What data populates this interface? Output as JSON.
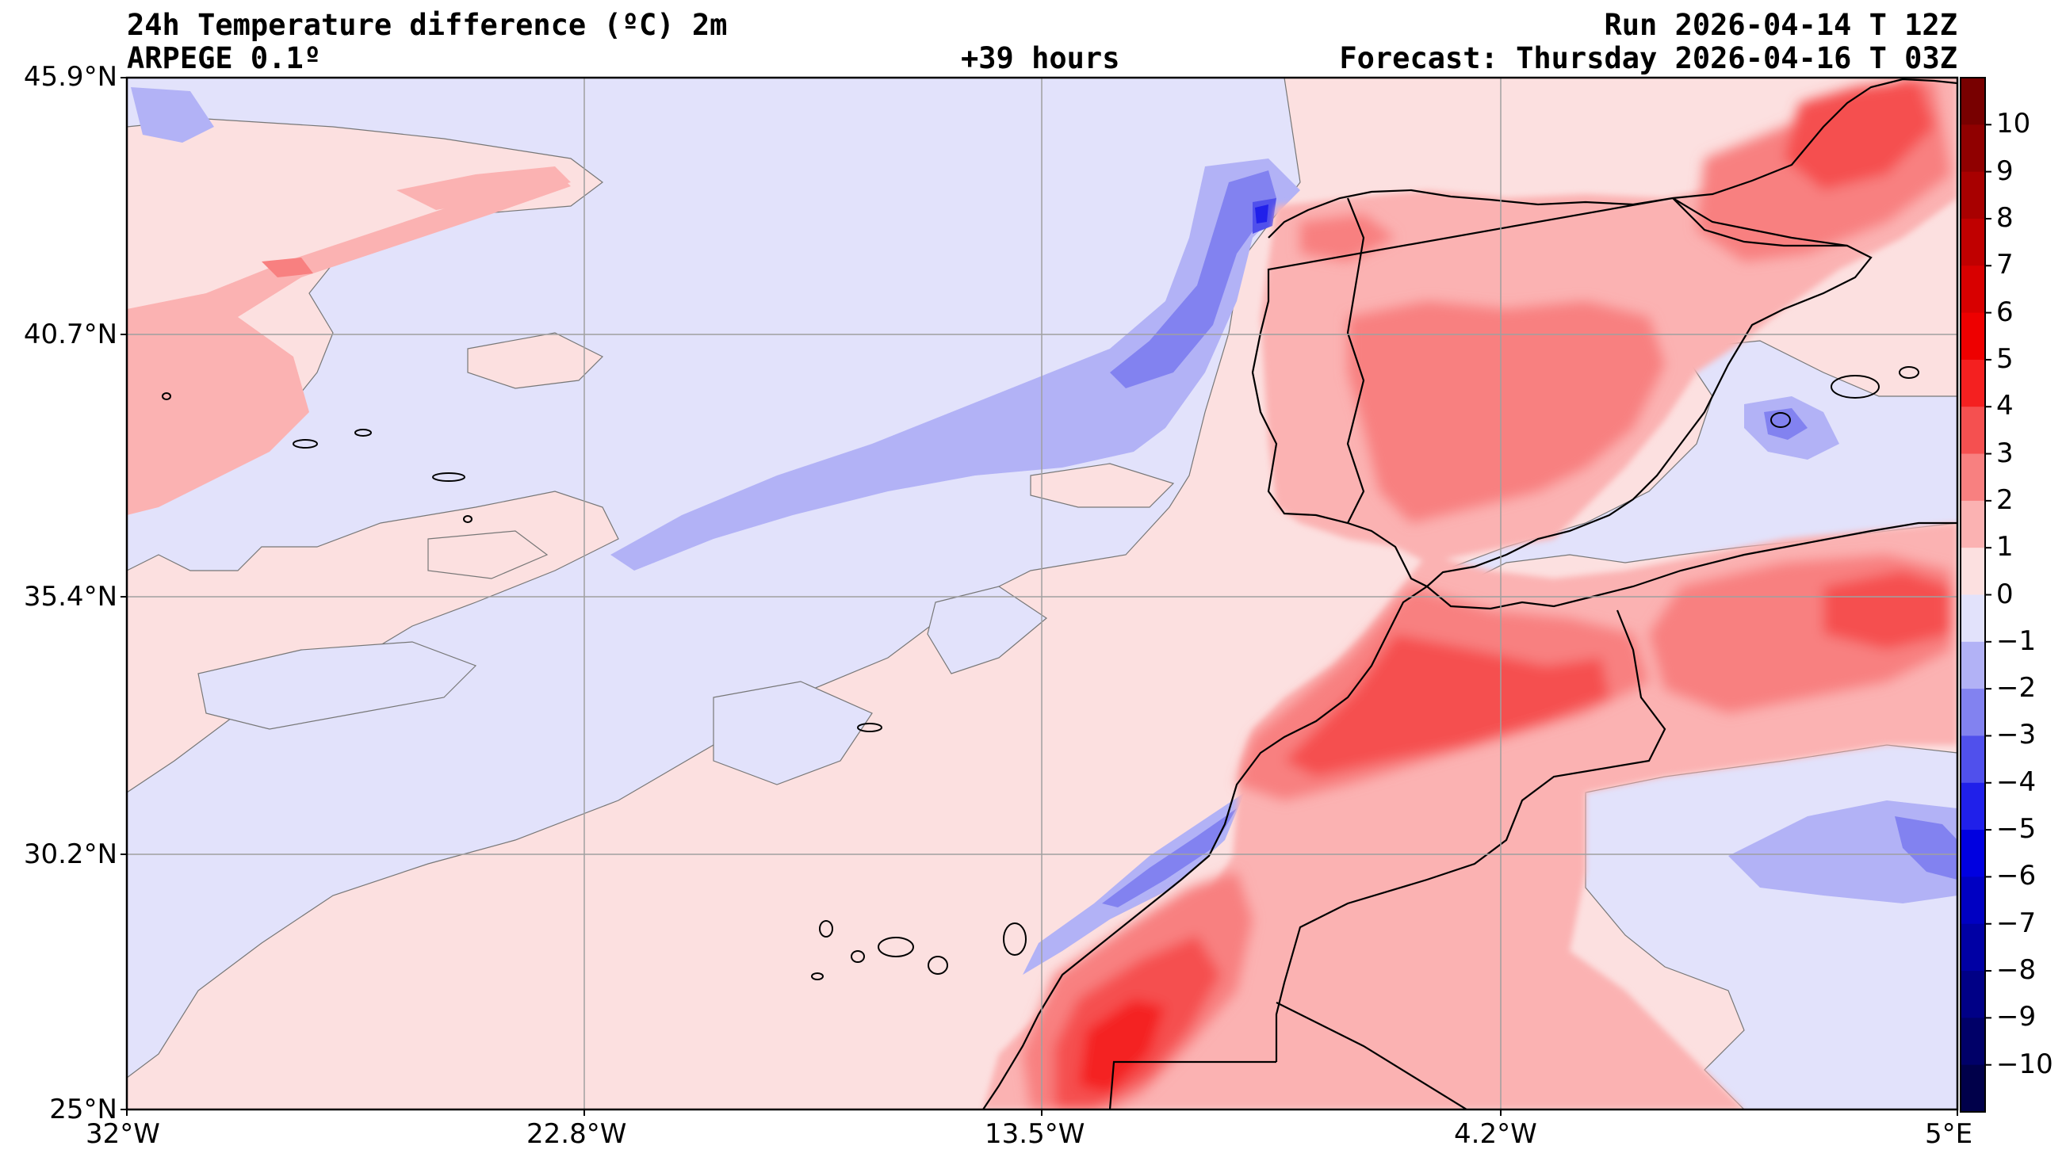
{
  "header": {
    "title": "24h Temperature difference (ºC) 2m",
    "model": "ARPEGE 0.1º",
    "lead": "+39 hours",
    "run": "Run 2026-04-14 T 12Z",
    "forecast": "Forecast: Thursday 2026-04-16 T 03Z"
  },
  "map": {
    "lat_ticks": [
      "45.9°N",
      "40.7°N",
      "35.4°N",
      "30.2°N",
      "25°N"
    ],
    "lon_ticks": [
      "32°W",
      "22.8°W",
      "13.5°W",
      "4.2°W",
      "5°E"
    ],
    "extent": {
      "lon_min": -32,
      "lon_max": 5,
      "lat_min": 25,
      "lat_max": 45.9
    }
  },
  "colorbar": {
    "labels": [
      "10",
      "9",
      "8",
      "7",
      "6",
      "5",
      "4",
      "3",
      "2",
      "1",
      "0",
      "−1",
      "−2",
      "−3",
      "−4",
      "−5",
      "−6",
      "−7",
      "−8",
      "−9",
      "−10"
    ]
  },
  "colors": {
    "pos": [
      "#fce0e0",
      "#fbb2b2",
      "#f88080",
      "#f55050",
      "#f42020",
      "#ee0000",
      "#d80000",
      "#c00000",
      "#a80000",
      "#900000",
      "#780000"
    ],
    "neg": [
      "#e2e2fb",
      "#b2b2f6",
      "#8282f0",
      "#5050ec",
      "#2020ea",
      "#0000e0",
      "#0000c2",
      "#0000a4",
      "#000086",
      "#000068",
      "#00004a"
    ]
  }
}
